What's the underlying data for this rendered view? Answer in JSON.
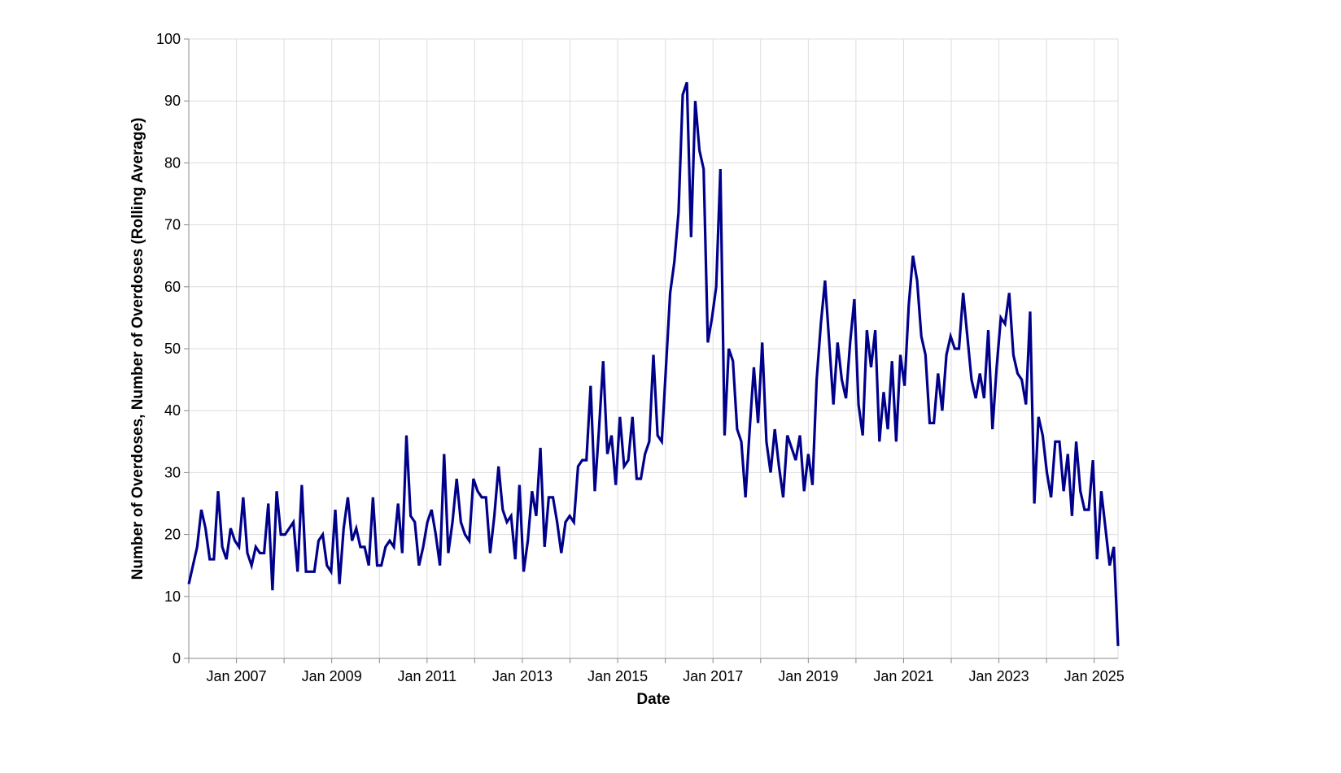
{
  "chart_data": {
    "type": "line",
    "title": "",
    "xlabel": "Date",
    "ylabel": "Number of Overdoses, Number of Overdoses (Rolling Average)",
    "line_color": "#00008b",
    "grid": true,
    "x_start": "2006-01",
    "x_end": "2025-07",
    "xlim": [
      "2006-01",
      "2025-07"
    ],
    "ylim": [
      0,
      100
    ],
    "y_ticks": [
      "0",
      "10",
      "20",
      "30",
      "40",
      "50",
      "60",
      "70",
      "80",
      "90",
      "100"
    ],
    "x_tick_dates": [
      "2006-01",
      "2007-01",
      "2008-01",
      "2009-01",
      "2010-01",
      "2011-01",
      "2012-01",
      "2013-01",
      "2014-01",
      "2015-01",
      "2016-01",
      "2017-01",
      "2018-01",
      "2019-01",
      "2020-01",
      "2021-01",
      "2022-01",
      "2023-01",
      "2024-01",
      "2025-01"
    ],
    "x_tick_labels": [
      "",
      "Jan 2007",
      "",
      "Jan 2009",
      "",
      "Jan 2011",
      "",
      "Jan 2013",
      "",
      "Jan 2015",
      "",
      "Jan 2017",
      "",
      "Jan 2019",
      "",
      "Jan 2021",
      "",
      "Jan 2023",
      "",
      "Jan 2025"
    ],
    "series": [
      {
        "values": [
          12,
          15,
          18,
          24,
          21,
          16,
          16,
          27,
          18,
          16,
          21,
          19,
          18,
          26,
          17,
          15,
          18,
          17,
          17,
          25,
          11,
          27,
          20,
          20,
          21,
          22,
          14,
          28,
          14,
          14,
          14,
          19,
          20,
          15,
          14,
          24,
          12,
          21,
          26,
          19,
          21,
          18,
          18,
          15,
          26,
          15,
          15,
          18,
          19,
          18,
          25,
          17,
          36,
          23,
          22,
          15,
          18,
          22,
          24,
          20,
          15,
          33,
          17,
          22,
          29,
          22,
          20,
          19,
          29,
          27,
          26,
          26,
          17,
          23,
          31,
          24,
          22,
          23,
          16,
          28,
          14,
          19,
          27,
          23,
          34,
          18,
          26,
          26,
          22,
          17,
          22,
          23,
          22,
          31,
          32,
          32,
          44,
          27,
          37,
          48,
          33,
          36,
          28,
          39,
          31,
          32,
          39,
          29,
          29,
          33,
          35,
          49,
          36,
          35,
          47,
          59,
          64,
          72,
          91,
          93,
          68,
          90,
          82,
          79,
          51,
          55,
          60,
          79,
          36,
          50,
          48,
          37,
          35,
          26,
          37,
          47,
          38,
          51,
          35,
          30,
          37,
          31,
          26,
          36,
          34,
          32,
          36,
          27,
          33,
          28,
          45,
          54,
          61,
          51,
          41,
          51,
          45,
          42,
          51,
          58,
          41,
          36,
          53,
          47,
          53,
          35,
          43,
          37,
          48,
          35,
          49,
          44,
          57,
          65,
          61,
          52,
          49,
          38,
          38,
          46,
          40,
          49,
          52,
          50,
          50,
          59,
          52,
          45,
          42,
          46,
          42,
          53,
          37,
          47,
          55,
          54,
          59,
          49,
          46,
          45,
          41,
          56,
          25,
          39,
          36,
          30,
          26,
          35,
          35,
          27,
          33,
          23,
          35,
          27,
          24,
          24,
          32,
          16,
          27,
          21,
          15,
          18,
          2
        ]
      }
    ]
  }
}
